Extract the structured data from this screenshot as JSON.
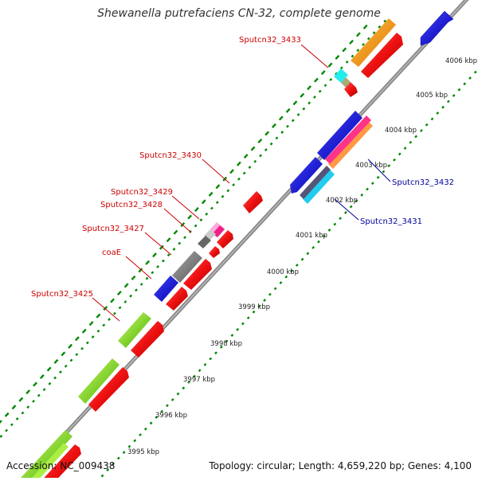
{
  "title": "Shewanella putrefaciens CN-32, complete genome",
  "accession": "Accession: NC_009438",
  "topology": "Topology: circular; Length: 4,659,220 bp; Genes: 4,100",
  "ticks": [
    "3995 kbp",
    "3996 kbp",
    "3997 kbp",
    "3998 kbp",
    "3999 kbp",
    "4000 kbp",
    "4001 kbp",
    "4002 kbp",
    "4003 kbp",
    "4004 kbp",
    "4005 kbp",
    "4006 kbp"
  ],
  "labels": {
    "red": [
      "Sputcn32_3433",
      "Sputcn32_3430",
      "Sputcn32_3429",
      "Sputcn32_3428",
      "Sputcn32_3427",
      "coaE",
      "Sputcn32_3425"
    ],
    "blue": [
      "Sputcn32_3432",
      "Sputcn32_3431"
    ]
  },
  "colors": {
    "red": "#ee1111",
    "blue": "#1111dd",
    "orange": "#ff9900",
    "green": "#88cc22",
    "gray": "#777777",
    "pink": "#ff44aa",
    "cyan": "#22ccee",
    "tick_green": "#008800",
    "label_red": "#cc0000",
    "label_blue": "#000099"
  }
}
